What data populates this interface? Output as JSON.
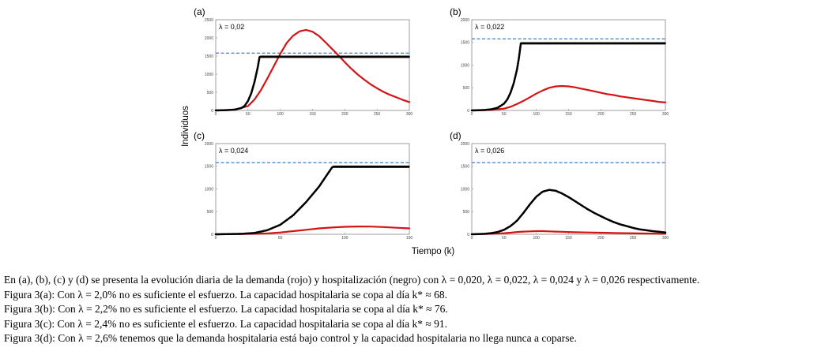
{
  "chart_data": [
    {
      "type": "line",
      "panel_label": "(a)",
      "annotation": "λ = 0,02",
      "xlim": [
        0,
        300
      ],
      "ylim": [
        0,
        2500
      ],
      "x_ticks": [
        0,
        50,
        100,
        150,
        200,
        250,
        300
      ],
      "y_ticks": [
        0,
        500,
        1000,
        1500,
        2000,
        2500
      ],
      "capacity_line": 1580,
      "series": [
        {
          "color": "#d41414",
          "style": "solid",
          "x": [
            0,
            30,
            50,
            60,
            70,
            80,
            90,
            100,
            110,
            120,
            130,
            140,
            150,
            160,
            170,
            180,
            190,
            200,
            210,
            220,
            230,
            240,
            250,
            260,
            270,
            280,
            290,
            300
          ],
          "y": [
            0,
            20,
            120,
            300,
            560,
            880,
            1220,
            1560,
            1860,
            2060,
            2180,
            2220,
            2170,
            2050,
            1880,
            1700,
            1520,
            1330,
            1150,
            990,
            850,
            720,
            610,
            510,
            430,
            360,
            290,
            230
          ]
        },
        {
          "color": "#000000",
          "style": "dotted",
          "x": [
            0,
            20,
            30,
            40,
            45,
            50,
            55,
            60,
            65,
            68,
            69,
            300
          ],
          "y": [
            0,
            10,
            25,
            70,
            130,
            260,
            470,
            780,
            1180,
            1480,
            1480,
            1480
          ]
        }
      ]
    },
    {
      "type": "line",
      "panel_label": "(b)",
      "annotation": "λ = 0,022",
      "xlim": [
        0,
        300
      ],
      "ylim": [
        0,
        2000
      ],
      "x_ticks": [
        0,
        50,
        100,
        150,
        200,
        250,
        300
      ],
      "y_ticks": [
        0,
        500,
        1000,
        1500,
        2000
      ],
      "capacity_line": 1580,
      "series": [
        {
          "color": "#d41414",
          "style": "solid",
          "x": [
            0,
            30,
            50,
            60,
            70,
            80,
            90,
            100,
            110,
            120,
            130,
            140,
            150,
            160,
            170,
            180,
            190,
            200,
            210,
            220,
            230,
            240,
            250,
            260,
            270,
            280,
            290,
            300
          ],
          "y": [
            0,
            10,
            40,
            80,
            140,
            210,
            290,
            370,
            440,
            500,
            530,
            540,
            530,
            510,
            480,
            450,
            420,
            390,
            360,
            340,
            310,
            290,
            270,
            250,
            230,
            210,
            190,
            175
          ]
        },
        {
          "color": "#000000",
          "style": "dotted",
          "x": [
            0,
            20,
            30,
            40,
            50,
            55,
            60,
            65,
            70,
            73,
            76,
            77,
            300
          ],
          "y": [
            0,
            10,
            25,
            60,
            150,
            240,
            390,
            600,
            900,
            1150,
            1480,
            1480,
            1480
          ]
        }
      ]
    },
    {
      "type": "line",
      "panel_label": "(c)",
      "annotation": "λ = 0,024",
      "xlim": [
        0,
        150
      ],
      "ylim": [
        0,
        2000
      ],
      "x_ticks": [
        0,
        50,
        100,
        150
      ],
      "y_ticks": [
        0,
        500,
        1000,
        1500,
        2000
      ],
      "capacity_line": 1580,
      "series": [
        {
          "color": "#d41414",
          "style": "solid",
          "x": [
            0,
            20,
            30,
            40,
            50,
            60,
            70,
            80,
            90,
            100,
            110,
            120,
            130,
            140,
            150
          ],
          "y": [
            0,
            5,
            10,
            20,
            40,
            70,
            100,
            130,
            150,
            165,
            172,
            170,
            160,
            145,
            130
          ]
        },
        {
          "color": "#000000",
          "style": "dotted",
          "x": [
            0,
            20,
            30,
            40,
            50,
            60,
            70,
            80,
            85,
            90,
            91,
            150
          ],
          "y": [
            0,
            10,
            30,
            90,
            210,
            420,
            710,
            1050,
            1260,
            1470,
            1490,
            1490
          ]
        }
      ]
    },
    {
      "type": "line",
      "panel_label": "(d)",
      "annotation": "λ = 0,026",
      "xlim": [
        0,
        300
      ],
      "ylim": [
        0,
        2000
      ],
      "x_ticks": [
        0,
        50,
        100,
        150,
        200,
        250,
        300
      ],
      "y_ticks": [
        0,
        500,
        1000,
        1500,
        2000
      ],
      "capacity_line": 1580,
      "series": [
        {
          "color": "#d41414",
          "style": "solid",
          "x": [
            0,
            30,
            50,
            60,
            70,
            80,
            90,
            100,
            110,
            120,
            130,
            140,
            150,
            160,
            180,
            200,
            220,
            240,
            260,
            280,
            300
          ],
          "y": [
            0,
            10,
            25,
            35,
            50,
            60,
            65,
            70,
            70,
            65,
            60,
            55,
            50,
            45,
            40,
            35,
            30,
            25,
            20,
            15,
            10
          ]
        },
        {
          "color": "#000000",
          "style": "dotted",
          "x": [
            0,
            20,
            30,
            40,
            50,
            60,
            70,
            80,
            90,
            100,
            110,
            120,
            130,
            140,
            150,
            160,
            170,
            180,
            190,
            200,
            210,
            220,
            230,
            240,
            250,
            260,
            270,
            280,
            290,
            300
          ],
          "y": [
            0,
            10,
            25,
            50,
            100,
            180,
            300,
            470,
            660,
            830,
            940,
            980,
            960,
            900,
            820,
            730,
            640,
            550,
            470,
            400,
            330,
            270,
            220,
            180,
            140,
            110,
            90,
            70,
            55,
            40
          ]
        }
      ]
    }
  ],
  "axis_titles": {
    "ylabel": "Individuos",
    "xlabel": "Tiempo (k)"
  },
  "caption": [
    "En (a), (b), (c) y (d) se presenta la evolución diaria de la demanda (rojo) y hospitalización (negro) con λ = 0,020, λ = 0,022, λ = 0,024 y λ = 0,026 respectivamente.",
    "Figura 3(a): Con λ = 2,0% no es suficiente el esfuerzo. La capacidad hospitalaria se copa al día k* ≈ 68.",
    "Figura 3(b): Con λ = 2,2% no es suficiente el esfuerzo. La capacidad hospitalaria se copa al día k* ≈ 76.",
    "Figura 3(c): Con λ = 2,4% no es suficiente el esfuerzo. La capacidad hospitalaria se copa al día k* ≈ 91.",
    "Figura 3(d): Con λ = 2,6% tenemos que la demanda hospitalaria está bajo control y la capacidad hospitalaria no llega nunca a coparse."
  ],
  "colors": {
    "demand": "#d41414",
    "hospitalization": "#000000",
    "capacity": "#2f6fb3"
  }
}
